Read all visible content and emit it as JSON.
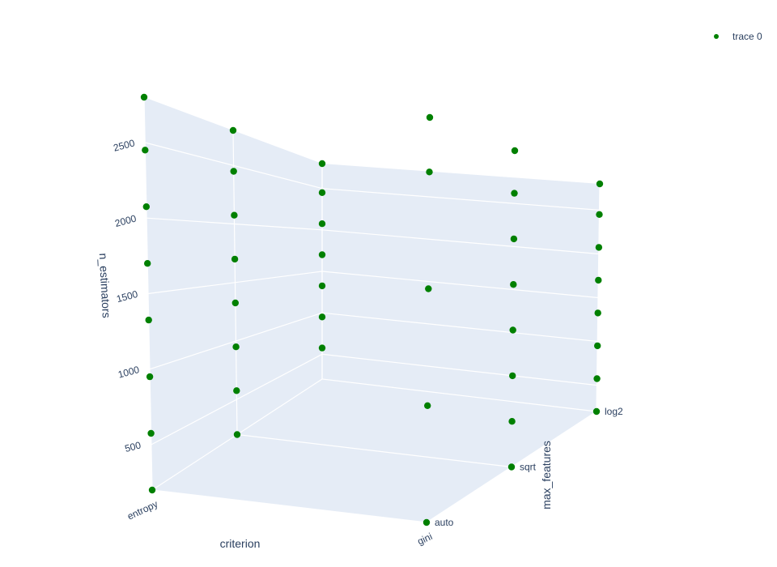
{
  "chart_data": {
    "type": "scatter3d",
    "legend": {
      "entries": [
        "trace 0"
      ],
      "position": "top-right"
    },
    "marker_color": "#008000",
    "pane_color": "#e5ecf6",
    "grid_color": "#ffffff",
    "text_color": "#2a3f5f",
    "axes": {
      "x": {
        "title": "criterion",
        "categories": [
          "entropy",
          "gini"
        ]
      },
      "y": {
        "title": "max_features",
        "categories": [
          "auto",
          "sqrt",
          "log2"
        ]
      },
      "z": {
        "title": "n_estimators",
        "ticks": [
          500,
          1000,
          1500,
          2000,
          2500
        ],
        "range": [
          200,
          2800
        ]
      }
    },
    "series": [
      {
        "name": "trace 0",
        "points": [
          {
            "x": "entropy",
            "y": "auto",
            "z": 200
          },
          {
            "x": "entropy",
            "y": "auto",
            "z": 575
          },
          {
            "x": "entropy",
            "y": "auto",
            "z": 950
          },
          {
            "x": "entropy",
            "y": "auto",
            "z": 1325
          },
          {
            "x": "entropy",
            "y": "auto",
            "z": 1700
          },
          {
            "x": "entropy",
            "y": "auto",
            "z": 2075
          },
          {
            "x": "entropy",
            "y": "auto",
            "z": 2450
          },
          {
            "x": "entropy",
            "y": "auto",
            "z": 2800
          },
          {
            "x": "entropy",
            "y": "sqrt",
            "z": 200
          },
          {
            "x": "entropy",
            "y": "sqrt",
            "z": 575
          },
          {
            "x": "entropy",
            "y": "sqrt",
            "z": 950
          },
          {
            "x": "entropy",
            "y": "sqrt",
            "z": 1325
          },
          {
            "x": "entropy",
            "y": "sqrt",
            "z": 1700
          },
          {
            "x": "entropy",
            "y": "sqrt",
            "z": 2075
          },
          {
            "x": "entropy",
            "y": "sqrt",
            "z": 2450
          },
          {
            "x": "entropy",
            "y": "sqrt",
            "z": 2800
          },
          {
            "x": "entropy",
            "y": "log2",
            "z": 575
          },
          {
            "x": "entropy",
            "y": "log2",
            "z": 950
          },
          {
            "x": "entropy",
            "y": "log2",
            "z": 1325
          },
          {
            "x": "entropy",
            "y": "log2",
            "z": 1700
          },
          {
            "x": "entropy",
            "y": "log2",
            "z": 2075
          },
          {
            "x": "entropy",
            "y": "log2",
            "z": 2450
          },
          {
            "x": "entropy",
            "y": "log2",
            "z": 2800
          },
          {
            "x": "gini",
            "y": "auto",
            "z": 200
          },
          {
            "x": "gini",
            "y": "auto",
            "z": 950
          },
          {
            "x": "gini",
            "y": "auto",
            "z": 1700
          },
          {
            "x": "gini",
            "y": "auto",
            "z": 2450
          },
          {
            "x": "gini",
            "y": "auto",
            "z": 2800
          },
          {
            "x": "gini",
            "y": "sqrt",
            "z": 200
          },
          {
            "x": "gini",
            "y": "sqrt",
            "z": 575
          },
          {
            "x": "gini",
            "y": "sqrt",
            "z": 950
          },
          {
            "x": "gini",
            "y": "sqrt",
            "z": 1325
          },
          {
            "x": "gini",
            "y": "sqrt",
            "z": 1700
          },
          {
            "x": "gini",
            "y": "sqrt",
            "z": 2075
          },
          {
            "x": "gini",
            "y": "sqrt",
            "z": 2450
          },
          {
            "x": "gini",
            "y": "sqrt",
            "z": 2800
          },
          {
            "x": "gini",
            "y": "log2",
            "z": 200
          },
          {
            "x": "gini",
            "y": "log2",
            "z": 575
          },
          {
            "x": "gini",
            "y": "log2",
            "z": 950
          },
          {
            "x": "gini",
            "y": "log2",
            "z": 1325
          },
          {
            "x": "gini",
            "y": "log2",
            "z": 1700
          },
          {
            "x": "gini",
            "y": "log2",
            "z": 2075
          },
          {
            "x": "gini",
            "y": "log2",
            "z": 2450
          },
          {
            "x": "gini",
            "y": "log2",
            "z": 2800
          }
        ]
      }
    ]
  }
}
